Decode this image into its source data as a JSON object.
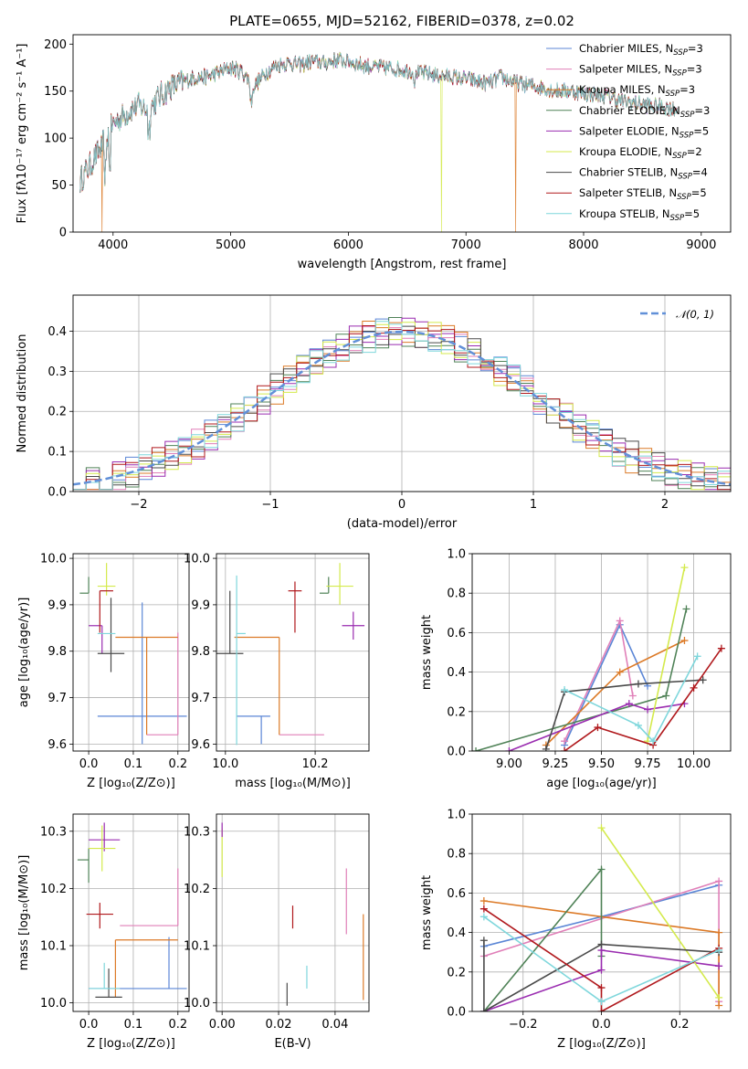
{
  "title": "PLATE=0655, MJD=52162, FIBERID=0378, z=0.02",
  "colors": {
    "Chabrier MILES": "#5b86d6",
    "Salpeter MILES": "#e07fb8",
    "Kroupa MILES": "#dc7a27",
    "Chabrier ELODIE": "#4f8257",
    "Salpeter ELODIE": "#9a2cb0",
    "Kroupa ELODIE": "#d4ea4c",
    "Chabrier STELIB": "#4a4a4a",
    "Salpeter STELIB": "#b0181c",
    "Kroupa STELIB": "#7fd7dc",
    "normal": "#6190d8"
  },
  "chart_data": [
    {
      "id": "spectrum",
      "type": "line",
      "title": "PLATE=0655, MJD=52162, FIBERID=0378, z=0.02",
      "xlabel": "wavelength [Angstrom, rest frame]",
      "ylabel": "Flux [fλ10⁻¹⁷ erg cm⁻² s⁻¹ A⁻¹]",
      "xlim": [
        3660,
        9250
      ],
      "ylim": [
        0,
        210
      ],
      "xticks": [
        "4000",
        "5000",
        "6000",
        "7000",
        "8000",
        "9000"
      ],
      "yticks": [
        "0",
        "50",
        "100",
        "150",
        "200"
      ],
      "legend_position": "top-right",
      "envelope": {
        "x": [
          3720,
          3800,
          3900,
          4000,
          4100,
          4200,
          4300,
          4400,
          4500,
          4600,
          4700,
          4800,
          4900,
          5000,
          5100,
          5200,
          5300,
          5400,
          5500,
          5600,
          5700,
          5800,
          5900,
          6000,
          6100,
          6200,
          6300,
          6400,
          6500,
          6600,
          6700,
          6800,
          6900,
          7000,
          7100,
          7200,
          7300,
          7400,
          7500,
          7600,
          7700,
          7800,
          7900,
          8000,
          8100,
          8200,
          8300,
          8400,
          8500,
          8600,
          8700,
          8800
        ],
        "y": [
          55,
          70,
          90,
          115,
          125,
          135,
          130,
          145,
          155,
          160,
          165,
          165,
          170,
          175,
          170,
          155,
          170,
          178,
          180,
          178,
          182,
          180,
          183,
          182,
          178,
          176,
          175,
          174,
          172,
          170,
          168,
          166,
          165,
          163,
          160,
          158,
          165,
          160,
          157,
          155,
          152,
          150,
          150,
          148,
          146,
          145,
          140,
          138,
          136,
          134,
          133,
          130
        ]
      },
      "series": [
        {
          "name": "Chabrier MILES, N_SSP=3",
          "label_base": "Chabrier MILES, N",
          "nssp": "=3",
          "dropout_x": null
        },
        {
          "name": "Salpeter MILES, N_SSP=3",
          "label_base": "Salpeter MILES, N",
          "nssp": "=3",
          "dropout_x": null
        },
        {
          "name": "Kroupa MILES, N_SSP=3",
          "label_base": "Kroupa MILES, N",
          "nssp": "=3",
          "dropout_x": 7420
        },
        {
          "name": "Chabrier ELODIE, N_SSP=3",
          "label_base": "Chabrier ELODIE, N",
          "nssp": "=3",
          "dropout_x": null
        },
        {
          "name": "Salpeter ELODIE, N_SSP=5",
          "label_base": "Salpeter ELODIE, N",
          "nssp": "=5",
          "dropout_x": null
        },
        {
          "name": "Kroupa ELODIE, N_SSP=2",
          "label_base": "Kroupa ELODIE, N",
          "nssp": "=2",
          "dropout_x": 6790
        },
        {
          "name": "Chabrier STELIB, N_SSP=4",
          "label_base": "Chabrier STELIB, N",
          "nssp": "=4",
          "dropout_x": null
        },
        {
          "name": "Salpeter STELIB, N_SSP=5",
          "label_base": "Salpeter STELIB, N",
          "nssp": "=5",
          "dropout_x": null
        },
        {
          "name": "Kroupa STELIB, N_SSP=5",
          "label_base": "Kroupa STELIB, N",
          "nssp": "=5",
          "dropout_x": null
        }
      ],
      "ssp_subscript": "SSP",
      "shared_dropout": {
        "x": 3905,
        "series": "Kroupa MILES, N_SSP=3"
      }
    },
    {
      "id": "residuals",
      "type": "histogram",
      "xlabel": "(data-model)/error",
      "ylabel": "Normed distribution",
      "xlim": [
        -2.5,
        2.5
      ],
      "ylim": [
        0,
        0.49
      ],
      "xticks": [
        "−2",
        "−1",
        "0",
        "1",
        "2"
      ],
      "yticks": [
        "0.0",
        "0.1",
        "0.2",
        "0.3",
        "0.4"
      ],
      "grid": true,
      "bin_width": 0.1,
      "legend_position": "top-right",
      "legend": [
        "𝒩(0, 1)"
      ]
    },
    {
      "id": "age_vs_Z",
      "type": "errorbar",
      "xlabel": "Z [log₁₀(Z/Z⊙)]",
      "ylabel": "age  [log₁₀(age/yr)]",
      "xlim": [
        -0.035,
        0.225
      ],
      "ylim": [
        9.585,
        10.01
      ],
      "xticks": [
        "0.0",
        "0.1",
        "0.2"
      ],
      "yticks": [
        "9.6",
        "9.7",
        "9.8",
        "9.9",
        "10.0"
      ],
      "grid": true,
      "points": [
        {
          "series": "Chabrier MILES",
          "x": 0.12,
          "y": 9.66,
          "xerr": [
            0.1,
            0.1
          ],
          "yerr": [
            0.06,
            0.245
          ]
        },
        {
          "series": "Salpeter MILES",
          "x": 0.2,
          "y": 9.62,
          "xerr": [
            0.07,
            0.0
          ],
          "yerr": [
            0.0,
            0.22
          ]
        },
        {
          "series": "Kroupa MILES",
          "x": 0.13,
          "y": 9.83,
          "xerr": [
            0.07,
            0.07
          ],
          "yerr": [
            0.21,
            0.0
          ]
        },
        {
          "series": "Chabrier ELODIE",
          "x": 0.0,
          "y": 9.925,
          "xerr": [
            0.02,
            0.0
          ],
          "yerr": [
            0.0,
            0.035
          ]
        },
        {
          "series": "Salpeter ELODIE",
          "x": 0.03,
          "y": 9.855,
          "xerr": [
            0.03,
            0.0
          ],
          "yerr": [
            0.06,
            0.0
          ]
        },
        {
          "series": "Kroupa ELODIE",
          "x": 0.04,
          "y": 9.94,
          "xerr": [
            0.02,
            0.02
          ],
          "yerr": [
            0.02,
            0.05
          ]
        },
        {
          "series": "Chabrier STELIB",
          "x": 0.05,
          "y": 9.795,
          "xerr": [
            0.03,
            0.03
          ],
          "yerr": [
            0.04,
            0.12
          ]
        },
        {
          "series": "Salpeter STELIB",
          "x": 0.025,
          "y": 9.93,
          "xerr": [
            0.0,
            0.03
          ],
          "yerr": [
            0.09,
            0.0
          ]
        },
        {
          "series": "Kroupa STELIB",
          "x": 0.04,
          "y": 9.838,
          "xerr": [
            0.02,
            0.02
          ],
          "yerr": [
            0.0,
            0.0
          ]
        }
      ]
    },
    {
      "id": "age_vs_mass",
      "type": "errorbar",
      "xlabel": "mass [log₁₀(M/M⊙)]",
      "ylabel": "",
      "xlim": [
        9.98,
        10.32
      ],
      "ylim": [
        9.585,
        10.01
      ],
      "xticks": [
        "10.0",
        "10.2"
      ],
      "yticks": [
        "9.6",
        "9.7",
        "9.8",
        "9.9",
        "10.0"
      ],
      "grid": true,
      "points": [
        {
          "series": "Chabrier MILES",
          "x": 10.08,
          "y": 9.66,
          "xerr": [
            0.055,
            0.02
          ],
          "yerr": [
            0.06,
            0.0
          ]
        },
        {
          "series": "Salpeter MILES",
          "x": 10.17,
          "y": 9.62,
          "xerr": [
            0.05,
            0.05
          ],
          "yerr": [
            0.0,
            0.0
          ]
        },
        {
          "series": "Kroupa MILES",
          "x": 10.12,
          "y": 9.83,
          "xerr": [
            0.1,
            0.0
          ],
          "yerr": [
            0.21,
            0.0
          ]
        },
        {
          "series": "Chabrier ELODIE",
          "x": 10.23,
          "y": 9.925,
          "xerr": [
            0.02,
            0.0
          ],
          "yerr": [
            0.0,
            0.035
          ]
        },
        {
          "series": "Salpeter ELODIE",
          "x": 10.285,
          "y": 9.855,
          "xerr": [
            0.025,
            0.025
          ],
          "yerr": [
            0.03,
            0.03
          ]
        },
        {
          "series": "Kroupa ELODIE",
          "x": 10.255,
          "y": 9.94,
          "xerr": [
            0.03,
            0.03
          ],
          "yerr": [
            0.04,
            0.05
          ]
        },
        {
          "series": "Chabrier STELIB",
          "x": 10.01,
          "y": 9.795,
          "xerr": [
            0.03,
            0.03
          ],
          "yerr": [
            0.0,
            0.135
          ]
        },
        {
          "series": "Salpeter STELIB",
          "x": 10.155,
          "y": 9.93,
          "xerr": [
            0.015,
            0.015
          ],
          "yerr": [
            0.09,
            0.02
          ]
        },
        {
          "series": "Kroupa STELIB",
          "x": 10.025,
          "y": 9.838,
          "xerr": [
            0.0,
            0.02
          ],
          "yerr": [
            0.24,
            0.125
          ]
        }
      ]
    },
    {
      "id": "massweight_vs_age",
      "type": "line",
      "xlabel": "age  [log₁₀(age/yr)]",
      "ylabel": "mass weight",
      "xlim": [
        8.8,
        10.2
      ],
      "ylim": [
        0,
        1.0
      ],
      "xticks": [
        "9.00",
        "9.25",
        "9.50",
        "9.75",
        "10.00"
      ],
      "yticks": [
        "0.0",
        "0.2",
        "0.4",
        "0.6",
        "0.8",
        "1.0"
      ],
      "grid": true,
      "series": [
        {
          "series": "Chabrier MILES",
          "x": [
            9.3,
            9.6,
            9.75
          ],
          "y": [
            0.03,
            0.64,
            0.33
          ]
        },
        {
          "series": "Salpeter MILES",
          "x": [
            9.3,
            9.6,
            9.67
          ],
          "y": [
            0.05,
            0.66,
            0.28
          ]
        },
        {
          "series": "Kroupa MILES",
          "x": [
            9.2,
            9.6,
            9.95
          ],
          "y": [
            0.03,
            0.4,
            0.56
          ]
        },
        {
          "series": "Chabrier ELODIE",
          "x": [
            8.82,
            9.85,
            9.96
          ],
          "y": [
            0.0,
            0.28,
            0.72
          ]
        },
        {
          "series": "Salpeter ELODIE",
          "x": [
            9.0,
            9.65,
            9.75,
            9.95
          ],
          "y": [
            0.0,
            0.24,
            0.21,
            0.24
          ]
        },
        {
          "series": "Kroupa ELODIE",
          "x": [
            9.75,
            9.95
          ],
          "y": [
            0.05,
            0.93
          ]
        },
        {
          "series": "Chabrier STELIB",
          "x": [
            9.2,
            9.3,
            9.7,
            10.05
          ],
          "y": [
            0.01,
            0.3,
            0.34,
            0.36
          ]
        },
        {
          "series": "Salpeter STELIB",
          "x": [
            9.3,
            9.48,
            9.78,
            10.0,
            10.15
          ],
          "y": [
            0.0,
            0.12,
            0.03,
            0.32,
            0.52
          ]
        },
        {
          "series": "Kroupa STELIB",
          "x": [
            9.3,
            9.7,
            9.78,
            10.02
          ],
          "y": [
            0.31,
            0.13,
            0.05,
            0.48
          ]
        }
      ]
    },
    {
      "id": "mass_vs_Z",
      "type": "errorbar",
      "xlabel": "Z [log₁₀(Z/Z⊙)]",
      "ylabel": "mass [log₁₀(M/M⊙)]",
      "xlim": [
        -0.035,
        0.225
      ],
      "ylim": [
        9.985,
        10.33
      ],
      "xticks": [
        "0.0",
        "0.1",
        "0.2"
      ],
      "yticks": [
        "10.0",
        "10.1",
        "10.2",
        "10.3"
      ],
      "grid": true,
      "points": [
        {
          "series": "Chabrier MILES",
          "x": 0.18,
          "y": 10.025,
          "xerr": [
            0.18,
            0.04
          ],
          "yerr": [
            0.0,
            0.09
          ]
        },
        {
          "series": "Salpeter MILES",
          "x": 0.2,
          "y": 10.135,
          "xerr": [
            0.13,
            0.0
          ],
          "yerr": [
            0.0,
            0.1
          ]
        },
        {
          "series": "Kroupa MILES",
          "x": 0.06,
          "y": 10.11,
          "xerr": [
            0.0,
            0.14
          ],
          "yerr": [
            0.1,
            0.0
          ]
        },
        {
          "series": "Chabrier ELODIE",
          "x": 0.0,
          "y": 10.25,
          "xerr": [
            0.025,
            0.0
          ],
          "yerr": [
            0.04,
            0.02
          ]
        },
        {
          "series": "Salpeter ELODIE",
          "x": 0.035,
          "y": 10.285,
          "xerr": [
            0.035,
            0.035
          ],
          "yerr": [
            0.02,
            0.03
          ]
        },
        {
          "series": "Kroupa ELODIE",
          "x": 0.03,
          "y": 10.27,
          "xerr": [
            0.03,
            0.03
          ],
          "yerr": [
            0.04,
            0.04
          ]
        },
        {
          "series": "Chabrier STELIB",
          "x": 0.045,
          "y": 10.01,
          "xerr": [
            0.03,
            0.03
          ],
          "yerr": [
            0.0,
            0.05
          ]
        },
        {
          "series": "Salpeter STELIB",
          "x": 0.025,
          "y": 10.155,
          "xerr": [
            0.03,
            0.03
          ],
          "yerr": [
            0.025,
            0.02
          ]
        },
        {
          "series": "Kroupa STELIB",
          "x": 0.035,
          "y": 10.025,
          "xerr": [
            0.035,
            0.035
          ],
          "yerr": [
            0.0,
            0.045
          ]
        }
      ]
    },
    {
      "id": "mass_vs_EBV",
      "type": "errorbar",
      "xlabel": "E(B-V)",
      "ylabel": "",
      "xlim": [
        -0.002,
        0.052
      ],
      "ylim": [
        9.985,
        10.33
      ],
      "xticks": [
        "0.00",
        "0.02",
        "0.04"
      ],
      "yticks": [
        "10.0",
        "10.1",
        "10.2",
        "10.3"
      ],
      "grid": true,
      "points": [
        {
          "series": "Kroupa ELODIE",
          "x": 0.0,
          "y": 10.26,
          "xerr": [
            0.0,
            0.0
          ],
          "yerr": [
            0.04,
            0.045
          ]
        },
        {
          "series": "Salpeter ELODIE",
          "x": 0.0,
          "y": 10.3,
          "xerr": [
            0.0,
            0.0
          ],
          "yerr": [
            0.01,
            0.015
          ]
        },
        {
          "series": "Salpeter STELIB",
          "x": 0.025,
          "y": 10.15,
          "xerr": [
            0.0,
            0.0
          ],
          "yerr": [
            0.02,
            0.02
          ]
        },
        {
          "series": "Salpeter MILES",
          "x": 0.044,
          "y": 10.175,
          "xerr": [
            0.0,
            0.0
          ],
          "yerr": [
            0.055,
            0.06
          ]
        },
        {
          "series": "Kroupa MILES",
          "x": 0.05,
          "y": 10.08,
          "xerr": [
            0.0,
            0.0
          ],
          "yerr": [
            0.075,
            0.075
          ]
        },
        {
          "series": "Kroupa STELIB",
          "x": 0.03,
          "y": 10.045,
          "xerr": [
            0.0,
            0.0
          ],
          "yerr": [
            0.02,
            0.02
          ]
        },
        {
          "series": "Chabrier STELIB",
          "x": 0.023,
          "y": 10.015,
          "xerr": [
            0.0,
            0.0
          ],
          "yerr": [
            0.02,
            0.02
          ]
        }
      ]
    },
    {
      "id": "massweight_vs_Z",
      "type": "line",
      "xlabel": "Z [log₁₀(Z/Z⊙)]",
      "ylabel": "mass weight",
      "xlim": [
        -0.33,
        0.33
      ],
      "ylim": [
        0,
        1.0
      ],
      "xticks": [
        "−0.2",
        "0.0",
        "0.2"
      ],
      "yticks": [
        "0.0",
        "0.2",
        "0.4",
        "0.6",
        "0.8",
        "1.0"
      ],
      "grid": true,
      "series": [
        {
          "series": "Chabrier MILES",
          "x": [
            -0.3,
            0.0,
            0.3
          ],
          "y": [
            0.33,
            0.48,
            0.64
          ]
        },
        {
          "series": "Salpeter MILES",
          "x": [
            -0.3,
            0.3,
            0.3
          ],
          "y": [
            0.28,
            0.66,
            0.05
          ]
        },
        {
          "series": "Kroupa MILES",
          "x": [
            -0.3,
            0.3,
            0.3
          ],
          "y": [
            0.56,
            0.4,
            0.03
          ]
        },
        {
          "series": "Chabrier ELODIE",
          "x": [
            -0.3,
            0.0,
            0.0
          ],
          "y": [
            0.0,
            0.72,
            0.28
          ]
        },
        {
          "series": "Salpeter ELODIE",
          "x": [
            -0.3,
            0.0,
            0.0,
            0.3
          ],
          "y": [
            0.0,
            0.21,
            0.31,
            0.23
          ]
        },
        {
          "series": "Kroupa ELODIE",
          "x": [
            0.0,
            0.3
          ],
          "y": [
            0.93,
            0.07
          ]
        },
        {
          "series": "Chabrier STELIB",
          "x": [
            -0.3,
            -0.3,
            0.0,
            0.3
          ],
          "y": [
            0.36,
            0.0,
            0.34,
            0.3
          ]
        },
        {
          "series": "Salpeter STELIB",
          "x": [
            -0.3,
            0.0,
            0.0,
            0.3
          ],
          "y": [
            0.52,
            0.12,
            0.0,
            0.32
          ]
        },
        {
          "series": "Kroupa STELIB",
          "x": [
            -0.3,
            0.0,
            0.3
          ],
          "y": [
            0.48,
            0.05,
            0.31
          ]
        }
      ]
    }
  ]
}
